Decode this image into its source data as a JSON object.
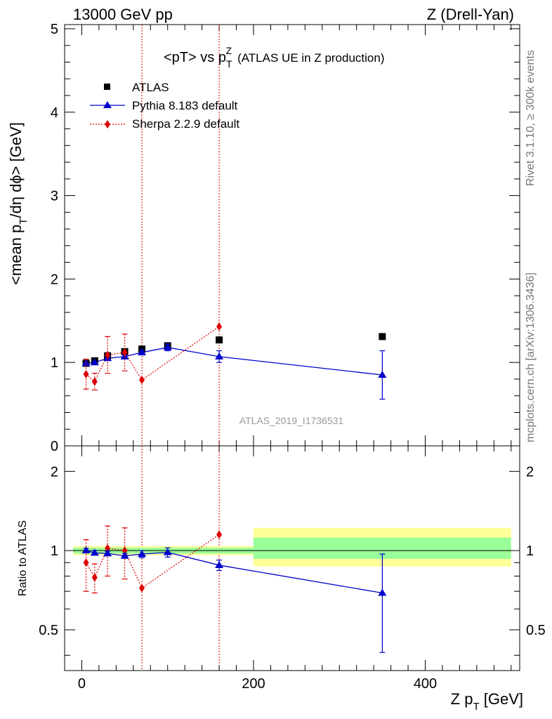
{
  "header": {
    "left": "13000 GeV pp",
    "right": "Z (Drell-Yan)"
  },
  "side_labels": {
    "rivet": "Rivet 3.1.10, ≥ 300k events",
    "mcplots": "mcplots.cern.ch [arXiv:1306.3436]"
  },
  "watermark": "ATLAS_2019_I1736531",
  "colors": {
    "atlas": "#000000",
    "pythia": "#0000cc",
    "sherpa": "#dd0000",
    "band_inner": "#99ff99",
    "band_outer": "#ffff99"
  },
  "chart_data": [
    {
      "type": "scatter",
      "panel": "main",
      "title": "<pT> vs p_T^Z",
      "title_main": "<pT> vs p",
      "title_sup": "Z",
      "title_sub": "T",
      "title_note": "(ATLAS UE in Z production)",
      "ylabel": "<mean p_T/dη dϕ> [GeV]",
      "ylabel_parts": {
        "a": "<mean p",
        "sub": "T",
        "b": "/dη dϕ> [GeV]"
      },
      "xlim": [
        -20,
        510
      ],
      "ylim": [
        0,
        5.05
      ],
      "yticks": [
        0,
        1,
        2,
        3,
        4,
        5
      ],
      "ytick_labels": [
        "0",
        "1",
        "2",
        "3",
        "4",
        "5"
      ],
      "legend": {
        "position": "top-left",
        "entries": [
          "ATLAS",
          "Pythia 8.183 default",
          "Sherpa 2.2.9 default"
        ]
      },
      "series": [
        {
          "name": "ATLAS",
          "style": "square-markers",
          "x": [
            5,
            15,
            30,
            50,
            70,
            100,
            160,
            350
          ],
          "y": [
            0.99,
            1.02,
            1.08,
            1.13,
            1.16,
            1.2,
            1.27,
            1.31
          ]
        },
        {
          "name": "Pythia 8.183 default",
          "style": "triangle-line",
          "x": [
            5,
            15,
            30,
            50,
            70,
            100,
            160,
            350
          ],
          "y": [
            0.99,
            1.0,
            1.05,
            1.07,
            1.12,
            1.18,
            1.07,
            0.85
          ],
          "yerr": [
            0.01,
            0.01,
            0.02,
            0.02,
            0.03,
            0.04,
            0.07,
            0.29
          ]
        },
        {
          "name": "Sherpa 2.2.9 default",
          "style": "diamond-dotted",
          "x": [
            5,
            15,
            30,
            50,
            70,
            100,
            160,
            350
          ],
          "y": [
            0.86,
            0.77,
            1.09,
            1.12,
            0.79,
            null,
            1.43,
            null
          ],
          "yerr": [
            0.18,
            0.1,
            0.22,
            0.22,
            0.0,
            null,
            0.0,
            null
          ],
          "vertical_lines_at_x": [
            70,
            160
          ]
        }
      ]
    },
    {
      "type": "scatter",
      "panel": "ratio",
      "ylabel": "Ratio to ATLAS",
      "xlabel": "Z p_T [GeV]",
      "xlabel_parts": {
        "a": "Z p",
        "sub": "T",
        "b": " [GeV]"
      },
      "xlim": [
        -20,
        510
      ],
      "ylim": [
        0.35,
        2.5
      ],
      "log_y": true,
      "yticks": [
        0.5,
        1,
        2
      ],
      "ytick_labels": [
        "0.5",
        "1",
        "2"
      ],
      "xticks": [
        0,
        200,
        400
      ],
      "xtick_labels": [
        "0",
        "200",
        "400"
      ],
      "bands": [
        {
          "x": [
            -10,
            200
          ],
          "inner": [
            0.975,
            1.025
          ],
          "outer": [
            0.96,
            1.04
          ]
        },
        {
          "x": [
            200,
            500
          ],
          "inner": [
            0.93,
            1.12
          ],
          "outer": [
            0.87,
            1.22
          ]
        }
      ],
      "series": [
        {
          "name": "Pythia 8.183 default",
          "x": [
            5,
            15,
            30,
            50,
            70,
            100,
            160,
            350
          ],
          "y": [
            1.0,
            0.98,
            0.975,
            0.955,
            0.97,
            0.985,
            0.88,
            0.69
          ],
          "yerr": [
            0.02,
            0.02,
            0.02,
            0.02,
            0.03,
            0.04,
            0.04,
            0.28
          ]
        },
        {
          "name": "Sherpa 2.2.9 default",
          "x": [
            5,
            15,
            30,
            50,
            70,
            160
          ],
          "y": [
            0.9,
            0.79,
            1.02,
            1.0,
            0.72,
            1.15
          ],
          "yerr": [
            0.2,
            0.1,
            0.22,
            0.22,
            0.0,
            0.0
          ]
        }
      ]
    }
  ]
}
